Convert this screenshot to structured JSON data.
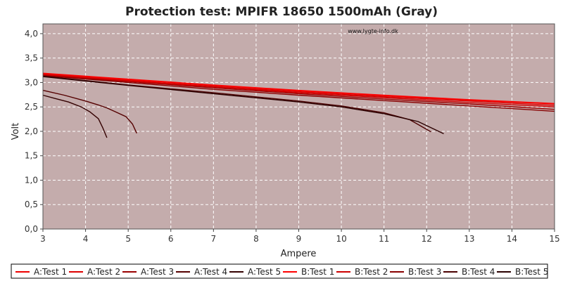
{
  "chart_data": {
    "type": "line",
    "title": "Protection test: MPIFR 18650 1500mAh (Gray)",
    "xlabel": "Ampere",
    "ylabel": "Volt",
    "watermark": "www.lygte-info.dk",
    "xlim": [
      3,
      15
    ],
    "ylim": [
      0,
      4.2
    ],
    "xticks": [
      3,
      4,
      5,
      6,
      7,
      8,
      9,
      10,
      11,
      12,
      13,
      14,
      15
    ],
    "yticks": [
      "0,0",
      "0,5",
      "1,0",
      "1,5",
      "2,0",
      "2,5",
      "3,0",
      "3,5",
      "4,0"
    ],
    "grid": true,
    "legend_position": "bottom",
    "colors": {
      "plot_background": "#c4acac",
      "grid": "#ffffff",
      "series_red": "#ee0000",
      "series_darkred": "#990000",
      "series_maroon": "#550000",
      "series_dark": "#330000"
    },
    "series": [
      {
        "name": "A:Test 1",
        "color": "#ee0000",
        "x": [
          3,
          5,
          7,
          9,
          11,
          13,
          15
        ],
        "y": [
          3.18,
          3.06,
          2.94,
          2.83,
          2.73,
          2.64,
          2.56
        ]
      },
      {
        "name": "A:Test 2",
        "color": "#dd0000",
        "x": [
          3,
          5,
          7,
          9,
          11,
          13,
          15
        ],
        "y": [
          3.17,
          3.04,
          2.92,
          2.81,
          2.71,
          2.62,
          2.53
        ]
      },
      {
        "name": "A:Test 3",
        "color": "#990000",
        "x": [
          3,
          5,
          7,
          9,
          11,
          13,
          15
        ],
        "y": [
          3.15,
          3.02,
          2.89,
          2.77,
          2.66,
          2.56,
          2.45
        ]
      },
      {
        "name": "A:Test 4",
        "color": "#550000",
        "x": [
          3,
          3.5,
          4,
          4.3,
          4.5,
          4.7,
          4.95,
          5.1,
          5.2
        ],
        "y": [
          2.84,
          2.74,
          2.62,
          2.54,
          2.48,
          2.4,
          2.3,
          2.15,
          1.96
        ]
      },
      {
        "name": "A:Test 5",
        "color": "#330000",
        "x": [
          3,
          3.3,
          3.6,
          3.9,
          4.1,
          4.3,
          4.4,
          4.5
        ],
        "y": [
          2.74,
          2.67,
          2.6,
          2.5,
          2.4,
          2.26,
          2.08,
          1.87
        ]
      },
      {
        "name": "B:Test 1",
        "color": "#ff0000",
        "x": [
          3,
          5,
          7,
          9,
          11,
          13,
          15
        ],
        "y": [
          3.19,
          3.07,
          2.95,
          2.84,
          2.74,
          2.65,
          2.57
        ]
      },
      {
        "name": "B:Test 2",
        "color": "#cc0000",
        "x": [
          3,
          5,
          7,
          9,
          11,
          13,
          15
        ],
        "y": [
          3.16,
          3.03,
          2.91,
          2.79,
          2.69,
          2.59,
          2.5
        ]
      },
      {
        "name": "B:Test 3",
        "color": "#880000",
        "x": [
          3,
          5,
          7,
          9,
          11,
          13,
          15
        ],
        "y": [
          3.14,
          3.0,
          2.86,
          2.74,
          2.63,
          2.52,
          2.41
        ]
      },
      {
        "name": "B:Test 4",
        "color": "#4a0000",
        "x": [
          3,
          5,
          7,
          9,
          10,
          11,
          11.6,
          12.1
        ],
        "y": [
          3.13,
          2.95,
          2.79,
          2.62,
          2.52,
          2.38,
          2.24,
          1.99
        ]
      },
      {
        "name": "B:Test 5",
        "color": "#2a0000",
        "x": [
          3,
          5,
          7,
          9,
          10,
          11,
          11.8,
          12.4
        ],
        "y": [
          3.12,
          2.94,
          2.77,
          2.6,
          2.5,
          2.36,
          2.2,
          1.95
        ]
      }
    ]
  }
}
